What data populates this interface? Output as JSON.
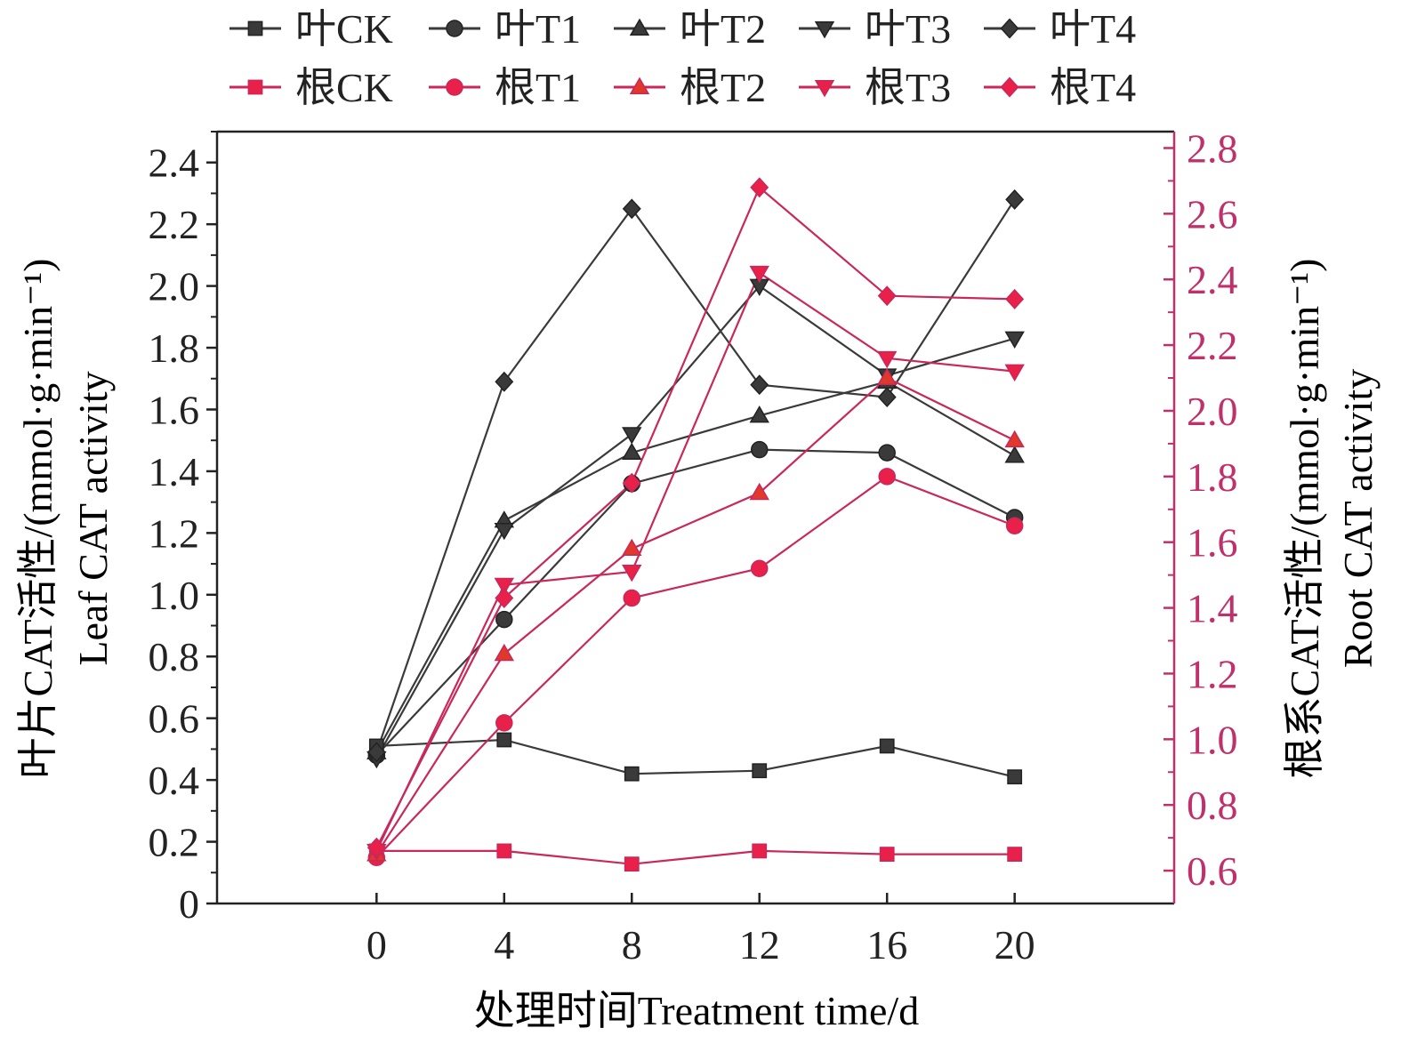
{
  "colors": {
    "leaf": "#3a3a3a",
    "root": "#c8285a",
    "root_marker": "#e8204a",
    "root_marker_tri": "#e0382a",
    "axis_right": "#c0306a"
  },
  "chart_data": {
    "type": "line",
    "x": [
      0,
      4,
      8,
      12,
      16,
      20
    ],
    "xlabel": "处理时间Treatment time/d",
    "ylabel_left_line1": "叶片CAT活性/(mmol·g·min⁻¹)",
    "ylabel_left_line2": "Leaf CAT activity",
    "ylabel_right_line1": "根系CAT活性/(mmol·g·min⁻¹)",
    "ylabel_right_line2": "Root CAT activity",
    "x_ticks": [
      "0",
      "4",
      "8",
      "12",
      "16",
      "20"
    ],
    "y_left_ticks": [
      "0",
      "0.2",
      "0.4",
      "0.6",
      "0.8",
      "1.0",
      "1.2",
      "1.4",
      "1.6",
      "1.8",
      "2.0",
      "2.2",
      "2.4"
    ],
    "y_right_ticks": [
      "0.6",
      "0.8",
      "1.0",
      "1.2",
      "1.4",
      "1.6",
      "1.8",
      "2.0",
      "2.2",
      "2.4",
      "2.6",
      "2.8"
    ],
    "xlim": [
      -5,
      25
    ],
    "ylim_left": [
      0,
      2.5
    ],
    "ylim_right": [
      0.5,
      2.85
    ],
    "grid": false,
    "legend_position": "top",
    "series": [
      {
        "name": "叶CK",
        "axis": "left",
        "group": "leaf",
        "marker": "square",
        "values": [
          0.51,
          0.53,
          0.42,
          0.43,
          0.51,
          0.41
        ]
      },
      {
        "name": "叶T1",
        "axis": "left",
        "group": "leaf",
        "marker": "circle",
        "values": [
          0.48,
          0.92,
          1.36,
          1.47,
          1.46,
          1.25
        ]
      },
      {
        "name": "叶T2",
        "axis": "left",
        "group": "leaf",
        "marker": "triangle",
        "values": [
          0.49,
          1.24,
          1.46,
          1.58,
          1.69,
          1.45
        ]
      },
      {
        "name": "叶T3",
        "axis": "left",
        "group": "leaf",
        "marker": "tri-down",
        "values": [
          0.47,
          1.21,
          1.52,
          2.0,
          1.71,
          1.83
        ]
      },
      {
        "name": "叶T4",
        "axis": "left",
        "group": "leaf",
        "marker": "diamond",
        "values": [
          0.49,
          1.69,
          2.25,
          1.68,
          1.64,
          2.28
        ]
      },
      {
        "name": "根CK",
        "axis": "right",
        "group": "root",
        "marker": "square",
        "values": [
          0.66,
          0.66,
          0.62,
          0.66,
          0.65,
          0.65
        ]
      },
      {
        "name": "根T1",
        "axis": "right",
        "group": "root",
        "marker": "circle",
        "values": [
          0.64,
          1.05,
          1.43,
          1.52,
          1.8,
          1.65
        ]
      },
      {
        "name": "根T2",
        "axis": "right",
        "group": "root",
        "marker": "triangle",
        "values": [
          0.65,
          1.26,
          1.58,
          1.75,
          2.1,
          1.91
        ]
      },
      {
        "name": "根T3",
        "axis": "right",
        "group": "root",
        "marker": "tri-down",
        "values": [
          0.66,
          1.47,
          1.51,
          2.42,
          2.16,
          2.12
        ]
      },
      {
        "name": "根T4",
        "axis": "right",
        "group": "root",
        "marker": "diamond",
        "values": [
          0.67,
          1.43,
          1.78,
          2.68,
          2.35,
          2.34
        ]
      }
    ]
  }
}
